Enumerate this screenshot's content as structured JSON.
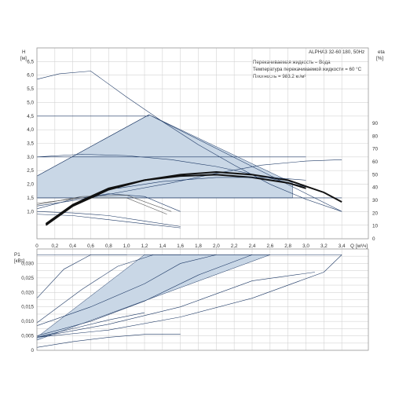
{
  "chart_data": [
    {
      "type": "line",
      "name": "head-and-efficiency",
      "title": "ALPHA3 32-60 180, 50Hz",
      "info_lines": [
        "Перекачиваемая жидкость = Вода",
        "Температура перекачиваемой жидкости = 60 °C",
        "Плотность = 983.2 кг/м³"
      ],
      "y_axis_label": [
        "H",
        "[м]"
      ],
      "y2_axis_label": [
        "eta",
        "[%]"
      ],
      "x_axis_label": [
        "Q",
        "[м³/ч]"
      ],
      "xlim": [
        0,
        3.6
      ],
      "ylim": [
        0,
        7.0
      ],
      "y2lim": [
        0,
        90
      ],
      "x_ticks": [
        "0",
        "0,2",
        "0,4",
        "0,6",
        "0,8",
        "1,0",
        "1,2",
        "1,4",
        "1,6",
        "1,8",
        "2,0",
        "2,2",
        "2,4",
        "2,6",
        "2,8",
        "3,0",
        "3,2",
        "3,4"
      ],
      "y_ticks": [
        "1,0",
        "1,5",
        "2,0",
        "2,5",
        "3,0",
        "3,5",
        "4,0",
        "4,5",
        "5,0",
        "5,5",
        "6,0",
        "6,5"
      ],
      "y2_ticks": [
        "0",
        "10",
        "20",
        "30",
        "40",
        "50",
        "60",
        "70",
        "80",
        "90"
      ],
      "regions": [
        {
          "points": [
            [
              0,
              2.3
            ],
            [
              1.25,
              4.55
            ],
            [
              2.85,
              2.05
            ],
            [
              2.85,
              1.5
            ],
            [
              0,
              1.5
            ]
          ],
          "color": "#c9d7e6"
        }
      ],
      "series": [
        {
          "style": "thin",
          "x": [
            0,
            0.25,
            0.6,
            1.0,
            1.4,
            1.8,
            2.2,
            2.6,
            3.0,
            3.4
          ],
          "y": [
            5.85,
            6.05,
            6.15,
            5.2,
            4.3,
            3.45,
            2.7,
            2.0,
            1.45,
            1.0
          ]
        },
        {
          "style": "thin",
          "x": [
            0,
            1.25
          ],
          "y": [
            4.5,
            4.5
          ]
        },
        {
          "style": "thin",
          "x": [
            0,
            1.25,
            3.4
          ],
          "y": [
            2.3,
            4.55,
            1.0
          ]
        },
        {
          "style": "thin",
          "x": [
            0,
            3.0
          ],
          "y": [
            3.0,
            3.0
          ]
        },
        {
          "style": "thin",
          "x": [
            0,
            0.5,
            1.0,
            1.5,
            2.0,
            2.5,
            3.0
          ],
          "y": [
            3.0,
            3.1,
            3.05,
            2.9,
            2.65,
            2.3,
            1.9
          ]
        },
        {
          "style": "thin",
          "x": [
            0,
            0.5,
            1.0,
            1.5,
            2.0,
            2.5,
            3.0,
            3.4
          ],
          "y": [
            1.2,
            1.45,
            1.75,
            2.05,
            2.4,
            2.7,
            2.85,
            2.9
          ]
        },
        {
          "style": "thin",
          "x": [
            0,
            3.4
          ],
          "y": [
            1.5,
            1.5
          ]
        },
        {
          "style": "thin",
          "x": [
            0,
            0.4,
            0.8,
            1.2,
            1.6
          ],
          "y": [
            1.1,
            1.45,
            1.65,
            1.55,
            1.0
          ]
        },
        {
          "style": "thin",
          "x": [
            0,
            0.4,
            0.8,
            1.2,
            1.6
          ],
          "y": [
            0.9,
            0.85,
            0.7,
            0.55,
            0.4
          ]
        },
        {
          "style": "thin",
          "x": [
            0,
            0.4,
            0.8,
            1.2,
            1.6
          ],
          "y": [
            1.0,
            0.95,
            0.85,
            0.65,
            0.45
          ]
        },
        {
          "style": "grey",
          "x": [
            0,
            0.5,
            1.0,
            1.5
          ],
          "y": [
            1.25,
            1.55,
            1.6,
            1.0
          ]
        },
        {
          "style": "grey",
          "x": [
            0,
            0.5,
            1.0,
            1.45
          ],
          "y": [
            1.3,
            1.5,
            1.5,
            0.9
          ]
        },
        {
          "style": "bold",
          "x": [
            0.1,
            0.4,
            0.8,
            1.2,
            1.6,
            2.0,
            2.4,
            2.8,
            3.2,
            3.4
          ],
          "y": [
            0.5,
            1.2,
            1.8,
            2.15,
            2.35,
            2.45,
            2.35,
            2.15,
            1.7,
            1.35
          ]
        },
        {
          "style": "bold",
          "x": [
            0.1,
            0.4,
            0.8,
            1.2,
            1.6,
            2.0,
            2.4,
            2.8,
            3.0
          ],
          "y": [
            0.55,
            1.25,
            1.85,
            2.15,
            2.3,
            2.35,
            2.25,
            2.05,
            1.85
          ]
        },
        {
          "style": "thin",
          "x": [
            0.9,
            1.4,
            2.0,
            2.6,
            3.0
          ],
          "y": [
            1.85,
            2.1,
            2.25,
            2.25,
            2.15
          ]
        }
      ]
    },
    {
      "type": "line",
      "name": "power",
      "y_axis_label": [
        "P1",
        "[кВт]"
      ],
      "xlim": [
        0,
        3.6
      ],
      "ylim": [
        0,
        0.035
      ],
      "y_ticks": [
        "0",
        "0,005",
        "0,010",
        "0,015",
        "0,020",
        "0,025",
        "0,030"
      ],
      "regions": [
        {
          "points": [
            [
              0,
              0.0045
            ],
            [
              1.2,
              0.033
            ],
            [
              2.6,
              0.033
            ],
            [
              0,
              0.0035
            ]
          ],
          "color": "#c9d7e6"
        }
      ],
      "series": [
        {
          "style": "thin",
          "x": [
            0,
            0.3,
            0.6,
            1.0
          ],
          "y": [
            0.018,
            0.028,
            0.033,
            0.033
          ]
        },
        {
          "style": "thin",
          "x": [
            0,
            0.5,
            0.9,
            1.3,
            1.6
          ],
          "y": [
            0.0095,
            0.021,
            0.029,
            0.033,
            0.033
          ]
        },
        {
          "style": "thin",
          "x": [
            0,
            0.6,
            1.2,
            1.6,
            2.0
          ],
          "y": [
            0.0085,
            0.015,
            0.023,
            0.03,
            0.033
          ]
        },
        {
          "style": "thin",
          "x": [
            0,
            0.6,
            1.2,
            1.8,
            2.4
          ],
          "y": [
            0.005,
            0.01,
            0.017,
            0.026,
            0.033
          ]
        },
        {
          "style": "thin",
          "x": [
            0,
            0.8,
            1.6,
            2.4,
            3.1
          ],
          "y": [
            0.0045,
            0.009,
            0.015,
            0.024,
            0.027
          ]
        },
        {
          "style": "thin",
          "x": [
            0,
            0.8,
            1.6,
            2.4,
            3.2,
            3.4
          ],
          "y": [
            0.0045,
            0.007,
            0.0115,
            0.018,
            0.027,
            0.033
          ]
        },
        {
          "style": "thin",
          "x": [
            0,
            0.4,
            0.8,
            1.2,
            1.6
          ],
          "y": [
            0.001,
            0.003,
            0.0045,
            0.0055,
            0.0055
          ]
        },
        {
          "style": "thin",
          "x": [
            0,
            1.2,
            2.6,
            3.4
          ],
          "y": [
            0.033,
            0.033,
            0.033,
            0.033
          ]
        },
        {
          "style": "thin",
          "x": [
            0,
            0.4,
            0.8,
            1.2
          ],
          "y": [
            0.0045,
            0.0075,
            0.0105,
            0.013
          ]
        }
      ]
    }
  ]
}
